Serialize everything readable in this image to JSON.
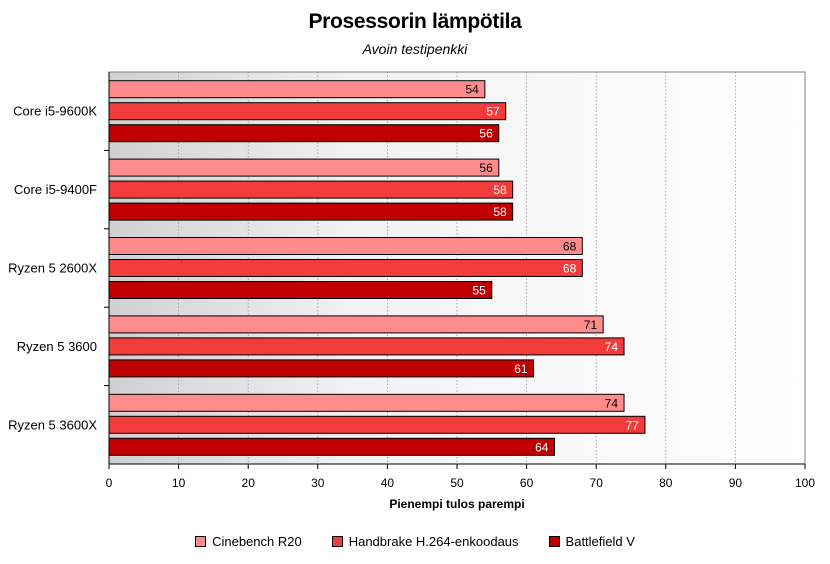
{
  "chart_data": {
    "type": "bar",
    "orientation": "horizontal",
    "title": "Prosessorin lämpötila",
    "subtitle": "Avoin testipenkki",
    "xlabel": "Pienempi tulos parempi",
    "xlim": [
      0,
      100
    ],
    "xticks": [
      0,
      10,
      20,
      30,
      40,
      50,
      60,
      70,
      80,
      90,
      100
    ],
    "grid": true,
    "legend_position": "bottom",
    "categories": [
      "Core i5-9600K",
      "Core i5-9400F",
      "Ryzen 5 2600X",
      "Ryzen 5 3600",
      "Ryzen 5 3600X"
    ],
    "series": [
      {
        "name": "Cinebench R20",
        "color": "#ff8c8c",
        "label_color": "#000000",
        "values": [
          54,
          56,
          68,
          71,
          74
        ]
      },
      {
        "name": "Handbrake H.264-enkoodaus",
        "color": "#f23b3b",
        "label_color": "#ffffff",
        "values": [
          57,
          58,
          68,
          74,
          77
        ]
      },
      {
        "name": "Battlefield V",
        "color": "#c00000",
        "label_color": "#ffffff",
        "values": [
          56,
          58,
          55,
          61,
          64
        ]
      }
    ]
  }
}
